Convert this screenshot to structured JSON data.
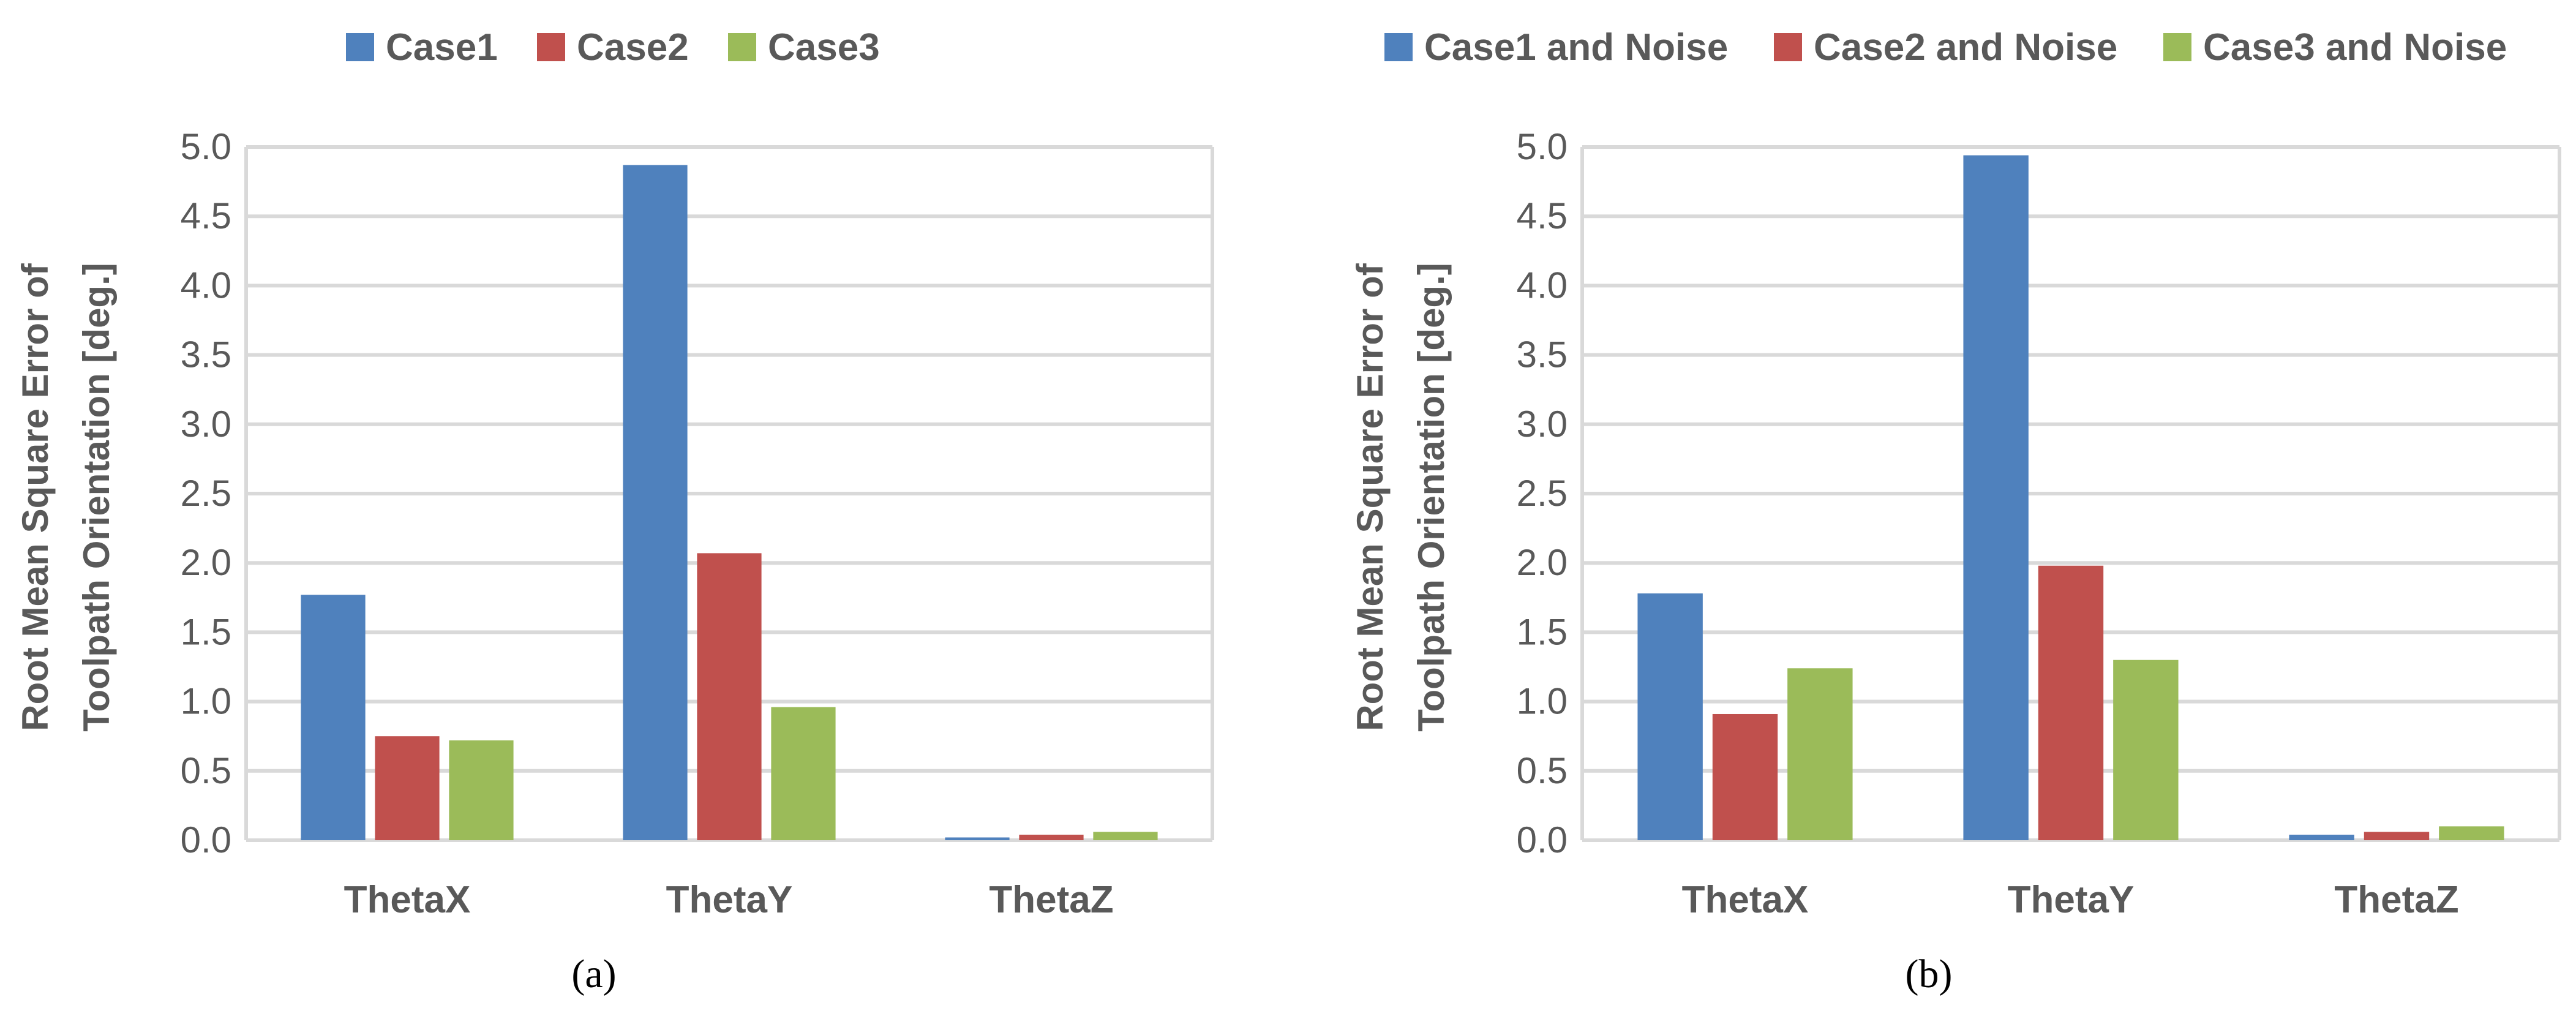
{
  "colors": {
    "series": [
      "#4f81bd",
      "#c0504d",
      "#9bbb59"
    ],
    "grid": "#d9d9d9",
    "axis_text": "#595959"
  },
  "chart_data": [
    {
      "type": "bar",
      "panel_label": "(a)",
      "title": "",
      "xlabel": "",
      "ylabel": [
        "Root Mean Square Error of",
        "Toolpath Orientation [deg.]"
      ],
      "categories": [
        "ThetaX",
        "ThetaY",
        "ThetaZ"
      ],
      "series": [
        {
          "name": "Case1",
          "values": [
            1.77,
            4.87,
            0.02
          ]
        },
        {
          "name": "Case2",
          "values": [
            0.75,
            2.07,
            0.04
          ]
        },
        {
          "name": "Case3",
          "values": [
            0.72,
            0.96,
            0.06
          ]
        }
      ],
      "ylim": [
        0,
        5
      ],
      "yticks": [
        "0.0",
        "0.5",
        "1.0",
        "1.5",
        "2.0",
        "2.5",
        "3.0",
        "3.5",
        "4.0",
        "4.5",
        "5.0"
      ],
      "grid": true,
      "legend_position": "top"
    },
    {
      "type": "bar",
      "panel_label": "(b)",
      "title": "",
      "xlabel": "",
      "ylabel": [
        "Root Mean Square Error of",
        "Toolpath Orientation [deg.]"
      ],
      "categories": [
        "ThetaX",
        "ThetaY",
        "ThetaZ"
      ],
      "series": [
        {
          "name": "Case1 and Noise",
          "values": [
            1.78,
            4.94,
            0.04
          ]
        },
        {
          "name": "Case2 and Noise",
          "values": [
            0.91,
            1.98,
            0.06
          ]
        },
        {
          "name": "Case3 and Noise",
          "values": [
            1.24,
            1.3,
            0.1
          ]
        }
      ],
      "ylim": [
        0,
        5
      ],
      "yticks": [
        "0.0",
        "0.5",
        "1.0",
        "1.5",
        "2.0",
        "2.5",
        "3.0",
        "3.5",
        "4.0",
        "4.5",
        "5.0"
      ],
      "grid": true,
      "legend_position": "top"
    }
  ]
}
